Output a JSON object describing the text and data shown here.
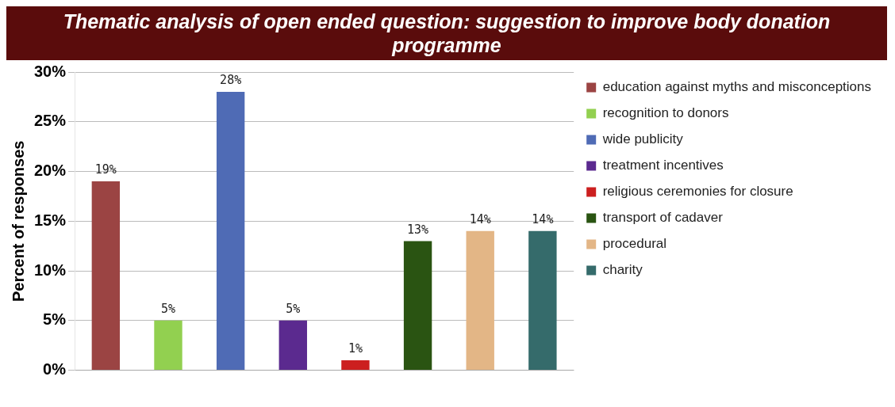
{
  "chart_data": {
    "type": "bar",
    "title": "Thematic analysis of open ended question: suggestion to improve body donation programme",
    "ylabel": "Percent of responses",
    "categories": [
      null
    ],
    "series": [
      {
        "name": "education against myths and misconceptions",
        "color": "#9b4443",
        "values": [
          19
        ],
        "value_labels": [
          "19%"
        ]
      },
      {
        "name": "recognition to donors",
        "color": "#92d050",
        "values": [
          5
        ],
        "value_labels": [
          "5%"
        ]
      },
      {
        "name": "wide publicity",
        "color": "#4f6bb5",
        "values": [
          28
        ],
        "value_labels": [
          "28%"
        ]
      },
      {
        "name": "treatment incentives",
        "color": "#5b2a8f",
        "values": [
          5
        ],
        "value_labels": [
          "5%"
        ]
      },
      {
        "name": "religious ceremonies for closure",
        "color": "#cc1f1f",
        "values": [
          1
        ],
        "value_labels": [
          "1%"
        ]
      },
      {
        "name": "transport of cadaver",
        "color": "#2a5412",
        "values": [
          13
        ],
        "value_labels": [
          "13%"
        ]
      },
      {
        "name": "procedural",
        "color": "#e3b686",
        "values": [
          14
        ],
        "value_labels": [
          "14%"
        ]
      },
      {
        "name": "charity",
        "color": "#356b6b",
        "values": [
          14
        ],
        "value_labels": [
          "14%"
        ]
      }
    ],
    "ylim": [
      0,
      30
    ],
    "yticks": [
      {
        "value": 0,
        "label": "0%"
      },
      {
        "value": 5,
        "label": "5%"
      },
      {
        "value": 10,
        "label": "10%"
      },
      {
        "value": 15,
        "label": "15%"
      },
      {
        "value": 20,
        "label": "20%"
      },
      {
        "value": 25,
        "label": "25%"
      },
      {
        "value": 30,
        "label": "30%"
      }
    ],
    "grid": "y",
    "legend": "right"
  }
}
